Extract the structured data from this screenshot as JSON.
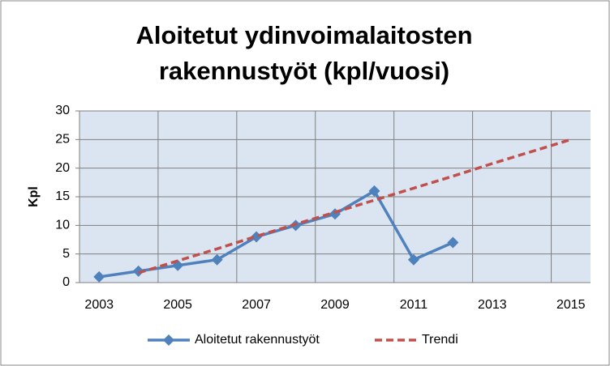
{
  "chart_data": {
    "type": "line",
    "title": [
      "Aloitetut ydinvoimalaitosten",
      "rakennustyöt (kpl/vuosi)"
    ],
    "y_label": "Kpl",
    "categories": [
      "2003",
      null,
      "2005",
      null,
      "2007",
      null,
      "2009",
      null,
      "2011",
      null,
      "2013",
      null,
      "2015"
    ],
    "series": [
      {
        "name": "Aloitetut rakennustyöt",
        "color": "#4f81bd",
        "marker": "diamond",
        "dash": false,
        "values": [
          1,
          2,
          3,
          4,
          8,
          10,
          12,
          16,
          4,
          7,
          null,
          null,
          null
        ]
      },
      {
        "name": "Trendi",
        "color": "#c0504d",
        "marker": "none",
        "dash": true,
        "values": [
          null,
          1.7,
          3.8,
          5.9,
          8.1,
          10.2,
          12.3,
          14.4,
          16.5,
          18.6,
          20.8,
          22.9,
          25.0
        ]
      }
    ],
    "ylim": [
      0,
      30
    ],
    "yticks": [
      0,
      5,
      10,
      15,
      20,
      25,
      30
    ],
    "grid": true,
    "legend": "bottom"
  }
}
